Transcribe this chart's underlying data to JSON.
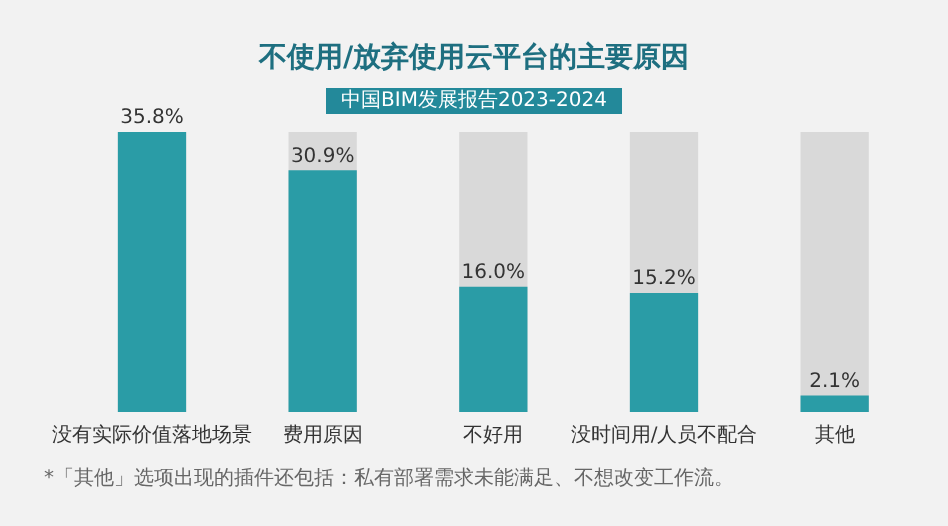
{
  "chart_data": {
    "type": "bar",
    "title": "不使用/放弃使用云平台的主要原因",
    "subtitle": "中国BIM发展报告2023-2024",
    "categories": [
      "没有实际价值落地场景",
      "费用原因",
      "不好用",
      "没时间用/人员不配合",
      "其他"
    ],
    "values": [
      35.8,
      30.9,
      16.0,
      15.2,
      2.1
    ],
    "color": "#2a9ca6",
    "tick_labels": "x",
    "value_labels": [
      "35.8%",
      "30.9%",
      "16.0%",
      "15.2%",
      "2.1%"
    ],
    "annotations": [
      "*「其他」选项出现的插件还包括：私有部署需求未能满足、不想改变工作流。"
    ],
    "grid": false,
    "legend": false
  }
}
